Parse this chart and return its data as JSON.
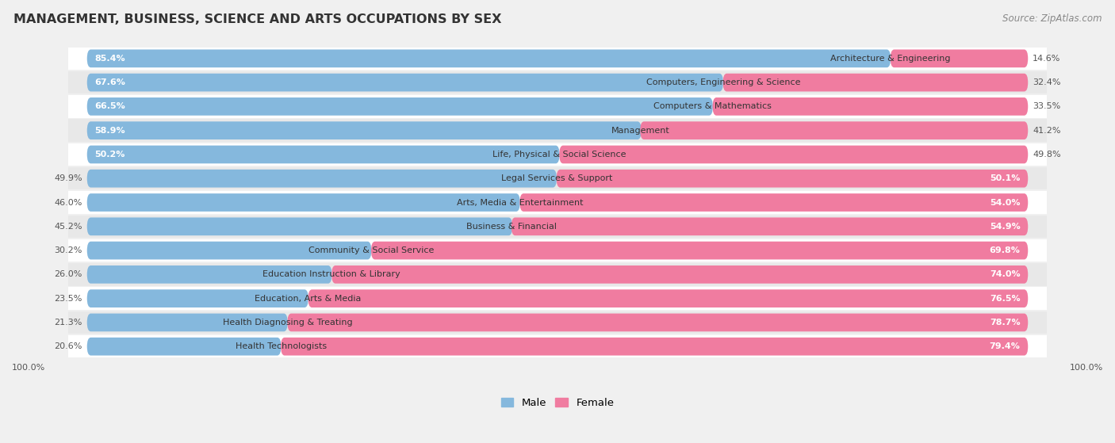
{
  "title": "MANAGEMENT, BUSINESS, SCIENCE AND ARTS OCCUPATIONS BY SEX",
  "source": "Source: ZipAtlas.com",
  "categories": [
    "Architecture & Engineering",
    "Computers, Engineering & Science",
    "Computers & Mathematics",
    "Management",
    "Life, Physical & Social Science",
    "Legal Services & Support",
    "Arts, Media & Entertainment",
    "Business & Financial",
    "Community & Social Service",
    "Education Instruction & Library",
    "Education, Arts & Media",
    "Health Diagnosing & Treating",
    "Health Technologists"
  ],
  "male_pct": [
    85.4,
    67.6,
    66.5,
    58.9,
    50.2,
    49.9,
    46.0,
    45.2,
    30.2,
    26.0,
    23.5,
    21.3,
    20.6
  ],
  "female_pct": [
    14.6,
    32.4,
    33.5,
    41.2,
    49.8,
    50.1,
    54.0,
    54.9,
    69.8,
    74.0,
    76.5,
    78.7,
    79.4
  ],
  "male_color": "#85b8dd",
  "female_color": "#f07ca0",
  "bg_color": "#f0f0f0",
  "row_colors": [
    "#ffffff",
    "#e8e8e8"
  ],
  "title_fontsize": 11.5,
  "bar_label_fontsize": 8.0,
  "cat_label_fontsize": 8.0,
  "legend_fontsize": 9.5,
  "source_fontsize": 8.5
}
